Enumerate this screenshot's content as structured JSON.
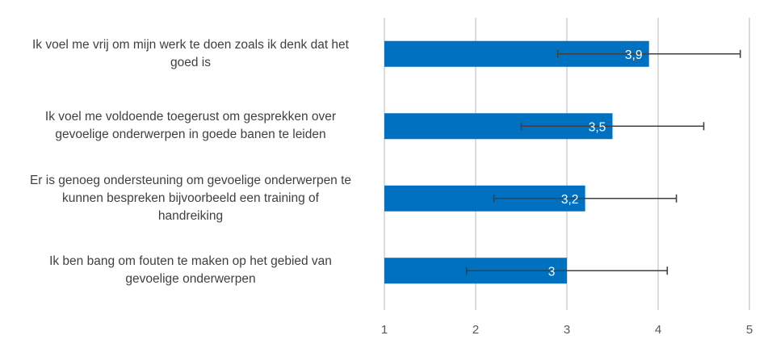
{
  "chart_data": {
    "type": "bar",
    "orientation": "horizontal",
    "categories": [
      "Ik voel me vrij om mijn werk te doen zoals ik denk dat het\ngoed is",
      "Ik voel me voldoende toegerust om gesprekken over\ngevoelige onderwerpen in goede banen te leiden",
      "Er is genoeg ondersteuning om gevoelige onderwerpen te\nkunnen bespreken  bijvoorbeeld een training of\nhandreiking",
      "Ik ben bang om fouten te maken op het gebied van\ngevoelige onderwerpen"
    ],
    "values": [
      3.9,
      3.5,
      3.2,
      3.0
    ],
    "value_labels": [
      "3,9",
      "3,5",
      "3,2",
      "3"
    ],
    "error_bars": [
      [
        2.9,
        4.9
      ],
      [
        2.5,
        4.5
      ],
      [
        2.2,
        4.2
      ],
      [
        1.9,
        4.1
      ]
    ],
    "xlim": [
      1,
      5
    ],
    "x_ticks": [
      "1",
      "2",
      "3",
      "4",
      "5"
    ],
    "grid": "vertical",
    "colors": {
      "bar": "#0070C0",
      "grid": "#D0D0D0",
      "error_bar": "#404040",
      "tick_text": "#595959",
      "label_text": "#404040",
      "value_text": "#ffffff"
    },
    "title": "",
    "xlabel": "",
    "ylabel": ""
  }
}
